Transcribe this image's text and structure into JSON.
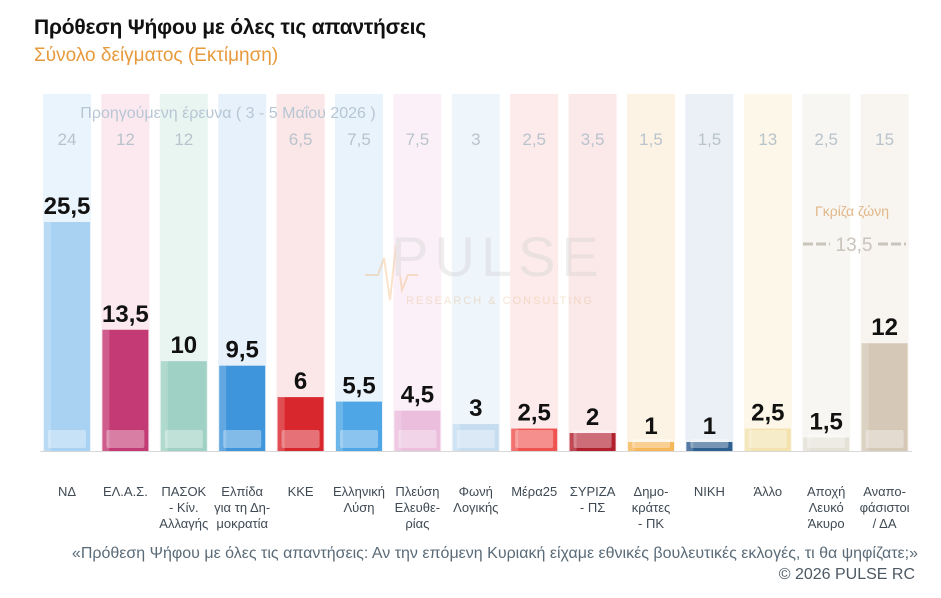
{
  "title": "Πρόθεση Ψήφου με όλες τις απαντήσεις",
  "subtitle": "Σύνολο δείγματος   (Εκτίμηση)",
  "previous_label": "Προηγούμενη έρευνα ( 3 - 5 Μαΐου 2026 )",
  "grey_zone_label": "Γκρίζα ζώνη",
  "grey_zone_value": "13,5",
  "watermark": {
    "main": "PULSE",
    "sub": "RESEARCH & CONSULTING"
  },
  "footnote": "«Πρόθεση Ψήφου με όλες τις απαντήσεις: Αν την επόμενη Κυριακή είχαμε εθνικές βουλευτικές εκλογές, τι θα ψηφίζατε;»",
  "copyright": "©  2026  PULSE RC",
  "chart_data": {
    "type": "bar",
    "ylim": [
      0,
      27
    ],
    "categories": [
      {
        "label": [
          "ΝΔ"
        ],
        "value": 25.5,
        "value_label": "25,5",
        "prev": "24",
        "color": "#a9d2f2",
        "col_bg": "#eaf4fc"
      },
      {
        "label": [
          "ΕΛ.Α.Σ."
        ],
        "value": 13.5,
        "value_label": "13,5",
        "prev": "12",
        "color": "#c43a74",
        "col_bg": "#fbe9ef"
      },
      {
        "label": [
          "ΠΑΣΟΚ",
          "- Κίν.",
          "Αλλαγής"
        ],
        "value": 10,
        "value_label": "10",
        "prev": "12",
        "color": "#9fd2c4",
        "col_bg": "#e9f5f1"
      },
      {
        "label": [
          "Ελπίδα",
          "για τη Δη-",
          "μοκρατία"
        ],
        "value": 9.5,
        "value_label": "9,5",
        "prev": "",
        "color": "#3f95dc",
        "col_bg": "#e6f1fb"
      },
      {
        "label": [
          "ΚΚΕ"
        ],
        "value": 6,
        "value_label": "6",
        "prev": "6,5",
        "color": "#d9272e",
        "col_bg": "#fbe7e7"
      },
      {
        "label": [
          "Ελληνική",
          "Λύση"
        ],
        "value": 5.5,
        "value_label": "5,5",
        "prev": "7,5",
        "color": "#4ea6e6",
        "col_bg": "#e8f3fc"
      },
      {
        "label": [
          "Πλεύση",
          "Ελευθε-",
          "ρίας"
        ],
        "value": 4.5,
        "value_label": "4,5",
        "prev": "7,5",
        "color": "#ecbede",
        "col_bg": "#fbf0f7"
      },
      {
        "label": [
          "Φωνή",
          "Λογικής"
        ],
        "value": 3,
        "value_label": "3",
        "prev": "3",
        "color": "#c6ddf0",
        "col_bg": "#eef5fb"
      },
      {
        "label": [
          "Μέρα25"
        ],
        "value": 2.5,
        "value_label": "2,5",
        "prev": "2,5",
        "color": "#ef5350",
        "col_bg": "#fdebeb"
      },
      {
        "label": [
          "ΣΥΡΙΖΑ",
          "- ΠΣ"
        ],
        "value": 2,
        "value_label": "2",
        "prev": "3,5",
        "color": "#b2202e",
        "col_bg": "#fbe9ea"
      },
      {
        "label": [
          "Δημο-",
          "κράτες",
          "- ΠΚ"
        ],
        "value": 1,
        "value_label": "1",
        "prev": "1,5",
        "color": "#f6b65a",
        "col_bg": "#fdf3e4"
      },
      {
        "label": [
          "ΝΙΚΗ"
        ],
        "value": 1,
        "value_label": "1",
        "prev": "1,5",
        "color": "#2f5f8f",
        "col_bg": "#eaf0f6"
      },
      {
        "label": [
          "Άλλο"
        ],
        "value": 2.5,
        "value_label": "2,5",
        "prev": "13",
        "color": "#f3e2ae",
        "col_bg": "#fcf7e8"
      },
      {
        "label": [
          "Αποχή",
          "Λευκό",
          "Άκυρο"
        ],
        "value": 1.5,
        "value_label": "1,5",
        "prev": "2,5",
        "color": "#e3e0d6",
        "col_bg": "#f7f6f2"
      },
      {
        "label": [
          "Αναπο-",
          "φάσιστοι",
          "/ ΔΑ"
        ],
        "value": 12,
        "value_label": "12",
        "prev": "15",
        "color": "#d5c8b6",
        "col_bg": "#f8f4ef"
      }
    ]
  }
}
